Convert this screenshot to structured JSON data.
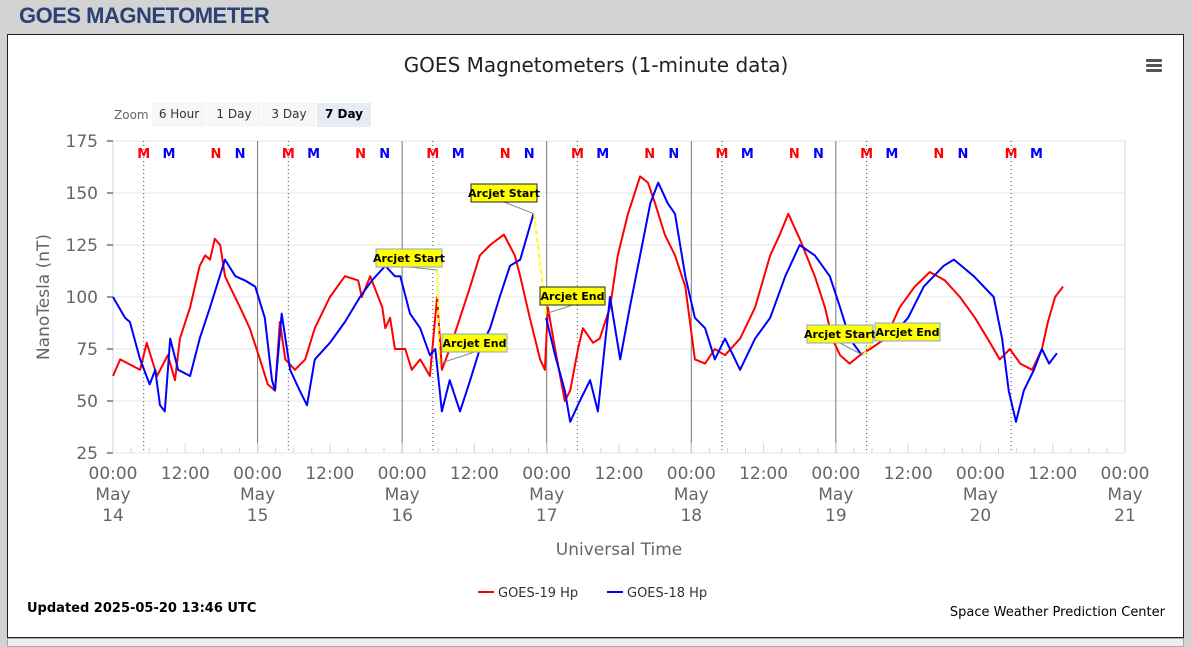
{
  "header": {
    "title": "GOES MAGNETOMETER"
  },
  "menu_icon": "hamburger-menu-icon",
  "zoom": {
    "label": "Zoom",
    "buttons": [
      "6 Hour",
      "1 Day",
      "3 Day",
      "7 Day"
    ],
    "selected": "7 Day"
  },
  "footer": {
    "updated": "Updated 2025-05-20 13:46 UTC",
    "credit": "Space Weather Prediction Center"
  },
  "chart_data": {
    "type": "line",
    "title": "GOES Magnetometers (1-minute data)",
    "xlabel": "Universal Time",
    "ylabel": "NanoTesla (nT)",
    "x_units": "hours since 2025-05-14 00:00 UTC",
    "xlim": [
      0,
      168
    ],
    "ylim": [
      25,
      175
    ],
    "yticks": [
      25,
      50,
      75,
      100,
      125,
      150,
      175
    ],
    "xticks": [
      {
        "t": 0,
        "l1": "00:00",
        "l2": "May",
        "l3": "14"
      },
      {
        "t": 12,
        "l1": "12:00"
      },
      {
        "t": 24,
        "l1": "00:00",
        "l2": "May",
        "l3": "15"
      },
      {
        "t": 36,
        "l1": "12:00"
      },
      {
        "t": 48,
        "l1": "00:00",
        "l2": "May",
        "l3": "16"
      },
      {
        "t": 60,
        "l1": "12:00"
      },
      {
        "t": 72,
        "l1": "00:00",
        "l2": "May",
        "l3": "17"
      },
      {
        "t": 84,
        "l1": "12:00"
      },
      {
        "t": 96,
        "l1": "00:00",
        "l2": "May",
        "l3": "18"
      },
      {
        "t": 108,
        "l1": "12:00"
      },
      {
        "t": 120,
        "l1": "00:00",
        "l2": "May",
        "l3": "19"
      },
      {
        "t": 132,
        "l1": "12:00"
      },
      {
        "t": 144,
        "l1": "00:00",
        "l2": "May",
        "l3": "20"
      },
      {
        "t": 156,
        "l1": "12:00"
      },
      {
        "t": 168,
        "l1": "00:00",
        "l2": "May",
        "l3": "21"
      }
    ],
    "legend": {
      "position": "bottom-center"
    },
    "series": [
      {
        "name": "GOES-19 Hp",
        "color": "#ff0000",
        "points": [
          [
            0,
            62
          ],
          [
            1.2,
            70
          ],
          [
            4.5,
            65
          ],
          [
            5.6,
            78
          ],
          [
            7.3,
            62
          ],
          [
            9.1,
            72
          ],
          [
            10.3,
            60
          ],
          [
            11.1,
            80
          ],
          [
            12.8,
            95
          ],
          [
            14.4,
            115
          ],
          [
            15.3,
            120
          ],
          [
            16.1,
            118
          ],
          [
            16.9,
            128
          ],
          [
            17.8,
            125
          ],
          [
            18.6,
            110
          ],
          [
            19.4,
            105
          ],
          [
            21.1,
            95
          ],
          [
            22.7,
            85
          ],
          [
            24.4,
            70
          ],
          [
            25.7,
            58
          ],
          [
            26.9,
            55
          ],
          [
            27.7,
            88
          ],
          [
            28.6,
            70
          ],
          [
            30.2,
            65
          ],
          [
            31.9,
            70
          ],
          [
            33.5,
            85
          ],
          [
            36,
            100
          ],
          [
            38.5,
            110
          ],
          [
            40.7,
            108
          ],
          [
            41.3,
            100
          ],
          [
            42.7,
            110
          ],
          [
            44.7,
            95
          ],
          [
            45.2,
            85
          ],
          [
            46,
            90
          ],
          [
            46.8,
            75
          ],
          [
            48.5,
            75
          ],
          [
            49.6,
            65
          ],
          [
            51,
            70
          ],
          [
            52.6,
            62
          ],
          [
            53.8,
            100
          ],
          [
            54.6,
            65
          ],
          [
            55.9,
            75
          ],
          [
            57.6,
            90
          ],
          [
            59.3,
            105
          ],
          [
            60.9,
            120
          ],
          [
            62.6,
            125
          ],
          [
            64.9,
            130
          ],
          [
            66.7,
            120
          ],
          [
            67.6,
            110
          ],
          [
            69.2,
            90
          ],
          [
            70.9,
            70
          ],
          [
            71.7,
            65
          ],
          [
            72.2,
            95
          ],
          [
            73.4,
            75
          ],
          [
            75,
            50
          ],
          [
            75.9,
            55
          ],
          [
            77.2,
            75
          ],
          [
            78,
            85
          ],
          [
            79.7,
            78
          ],
          [
            80.8,
            80
          ],
          [
            82.5,
            95
          ],
          [
            83.8,
            120
          ],
          [
            85.5,
            140
          ],
          [
            87.5,
            158
          ],
          [
            88.8,
            155
          ],
          [
            90,
            145
          ],
          [
            91.6,
            130
          ],
          [
            93.3,
            120
          ],
          [
            95,
            105
          ],
          [
            96.6,
            70
          ],
          [
            98.3,
            68
          ],
          [
            99.9,
            75
          ],
          [
            101.6,
            72
          ],
          [
            104.1,
            80
          ],
          [
            106.6,
            95
          ],
          [
            109.1,
            120
          ],
          [
            110.7,
            130
          ],
          [
            112.1,
            140
          ],
          [
            114,
            128
          ],
          [
            116.5,
            110
          ],
          [
            118.2,
            95
          ],
          [
            119.4,
            80
          ],
          [
            120.7,
            72
          ],
          [
            122.3,
            68
          ],
          [
            124,
            72
          ],
          [
            125.7,
            75
          ],
          [
            128.2,
            80
          ],
          [
            130.6,
            95
          ],
          [
            133.1,
            105
          ],
          [
            135.6,
            112
          ],
          [
            138.1,
            108
          ],
          [
            140.6,
            100
          ],
          [
            143.1,
            90
          ],
          [
            145.6,
            78
          ],
          [
            147.2,
            70
          ],
          [
            148.9,
            75
          ],
          [
            150.6,
            68
          ],
          [
            152.6,
            65
          ],
          [
            154.2,
            75
          ],
          [
            155.2,
            88
          ],
          [
            156.4,
            100
          ],
          [
            157.7,
            105
          ]
        ]
      },
      {
        "name": "GOES-18 Hp",
        "color": "#0000ff",
        "points": [
          [
            0,
            100
          ],
          [
            2,
            90
          ],
          [
            2.8,
            88
          ],
          [
            4.5,
            70
          ],
          [
            6.1,
            58
          ],
          [
            7,
            65
          ],
          [
            7.8,
            48
          ],
          [
            8.6,
            45
          ],
          [
            9.5,
            80
          ],
          [
            10.8,
            65
          ],
          [
            12.8,
            62
          ],
          [
            14.4,
            80
          ],
          [
            16.1,
            95
          ],
          [
            18.6,
            118
          ],
          [
            20.3,
            110
          ],
          [
            21.9,
            108
          ],
          [
            23.6,
            105
          ],
          [
            25.2,
            90
          ],
          [
            26.4,
            60
          ],
          [
            26.9,
            55
          ],
          [
            28,
            92
          ],
          [
            29.4,
            65
          ],
          [
            31,
            55
          ],
          [
            32.2,
            48
          ],
          [
            33.5,
            70
          ],
          [
            36,
            78
          ],
          [
            38.5,
            88
          ],
          [
            41,
            100
          ],
          [
            43,
            108
          ],
          [
            45.2,
            115
          ],
          [
            46.8,
            110
          ],
          [
            47.7,
            110
          ],
          [
            49.3,
            92
          ],
          [
            51,
            85
          ],
          [
            52.6,
            72
          ],
          [
            53.5,
            75
          ],
          [
            54.6,
            45
          ],
          [
            55.9,
            60
          ],
          [
            57.6,
            45
          ],
          [
            59.3,
            60
          ],
          [
            60.9,
            75
          ],
          [
            62.6,
            85
          ],
          [
            64.2,
            100
          ],
          [
            65.9,
            115
          ],
          [
            67.6,
            118
          ],
          [
            69.8,
            140
          ],
          null,
          [
            71.9,
            90
          ],
          [
            73.4,
            72
          ],
          [
            75,
            55
          ],
          [
            75.9,
            40
          ],
          [
            77.5,
            50
          ],
          [
            79.2,
            60
          ],
          [
            80.5,
            45
          ],
          [
            81.7,
            78
          ],
          [
            82.5,
            100
          ],
          [
            84.2,
            70
          ],
          [
            85.8,
            95
          ],
          [
            87.5,
            120
          ],
          [
            89.2,
            145
          ],
          [
            90.5,
            155
          ],
          [
            92.1,
            145
          ],
          [
            93.3,
            140
          ],
          [
            95,
            110
          ],
          [
            96.6,
            90
          ],
          [
            98.3,
            85
          ],
          [
            99.9,
            70
          ],
          [
            101.6,
            80
          ],
          [
            104.1,
            65
          ],
          [
            106.6,
            80
          ],
          [
            109.1,
            90
          ],
          [
            111.6,
            110
          ],
          [
            114,
            125
          ],
          [
            116.5,
            120
          ],
          [
            119,
            110
          ],
          [
            120.7,
            95
          ],
          [
            122.3,
            80
          ],
          [
            124.3,
            72
          ],
          null,
          [
            126.5,
            80
          ],
          [
            129.5,
            82
          ],
          [
            132,
            90
          ],
          [
            134.6,
            105
          ],
          [
            137.9,
            115
          ],
          [
            139.6,
            118
          ],
          [
            142.9,
            110
          ],
          [
            146.2,
            100
          ],
          [
            147.6,
            80
          ],
          [
            148.7,
            55
          ],
          [
            149.9,
            40
          ],
          [
            151.2,
            55
          ],
          [
            152.9,
            65
          ],
          [
            154.2,
            75
          ],
          [
            155.4,
            68
          ],
          [
            156.7,
            73
          ]
        ]
      }
    ],
    "arcjet_color": "#ffff00",
    "arcjets": [
      {
        "start": [
          53.8,
          113
        ],
        "end": [
          54.2,
          68
        ],
        "start_label": "Arcjet Start",
        "end_label": "Arcjet End"
      },
      {
        "start": [
          69.9,
          140
        ],
        "end": [
          71.9,
          92
        ],
        "start_label": "Arcjet Start",
        "end_label": "Arcjet End"
      },
      {
        "start": [
          124.5,
          72
        ],
        "end": [
          126.5,
          80
        ],
        "start_label": "Arcjet Start",
        "end_label": "Arcjet End"
      }
    ],
    "event_markers": [
      {
        "label": "M",
        "color": "#ff0000",
        "hour_of_day": 5.1,
        "dotted": true
      },
      {
        "label": "M",
        "color": "#0000ff",
        "hour_of_day": 9.3
      },
      {
        "label": "N",
        "color": "#ff0000",
        "hour_of_day": 17.1
      },
      {
        "label": "N",
        "color": "#0000ff",
        "hour_of_day": 21.1
      }
    ]
  }
}
